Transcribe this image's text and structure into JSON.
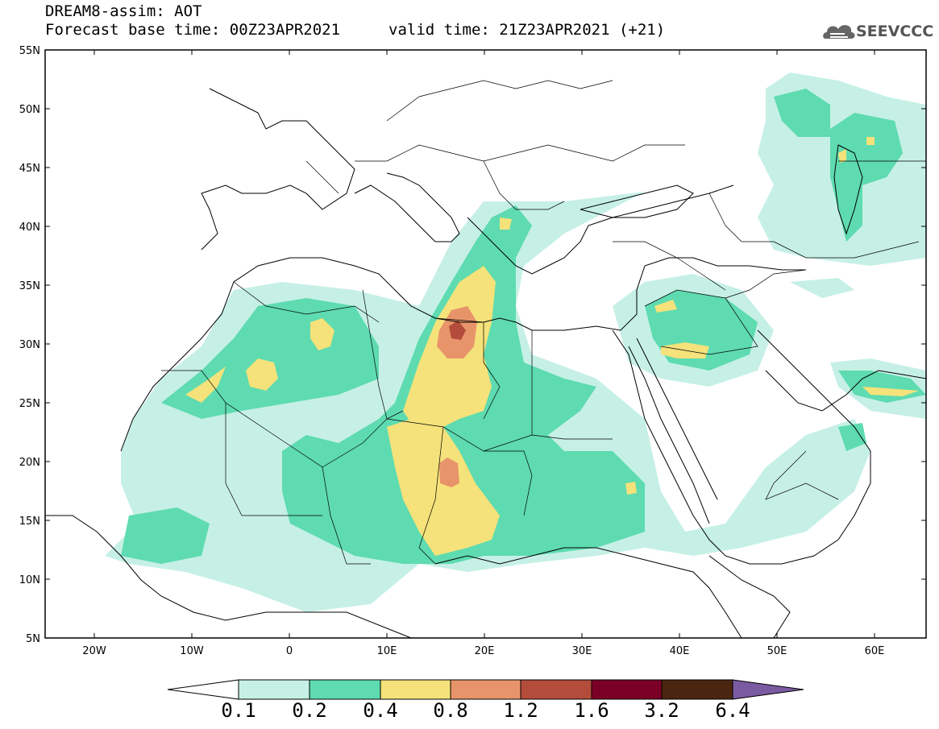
{
  "header": {
    "line1": "DREAM8-assim: AOT",
    "line2": "Forecast base time: 00Z23APR2021",
    "valid_time": "valid time: 21Z23APR2021 (+21)",
    "logo_text": "SEEVCCC"
  },
  "map": {
    "lon_range": [
      -25,
      65
    ],
    "lat_range": [
      5,
      55
    ],
    "lat_labels": [
      "55N",
      "50N",
      "45N",
      "40N",
      "35N",
      "30N",
      "25N",
      "20N",
      "15N",
      "10N",
      "5N"
    ],
    "lon_labels": [
      "20W",
      "10W",
      "0",
      "10E",
      "20E",
      "30E",
      "40E",
      "50E",
      "60E"
    ]
  },
  "colorbar": {
    "labels": [
      "0.1",
      "0.2",
      "0.4",
      "0.8",
      "1.2",
      "1.6",
      "3.2",
      "6.4"
    ],
    "colors": [
      "#ffffff",
      "#c6f0e6",
      "#5edbb0",
      "#f5e27a",
      "#e8946a",
      "#b34c3a",
      "#7a0026",
      "#4a2610",
      "#7a5aa0"
    ]
  }
}
